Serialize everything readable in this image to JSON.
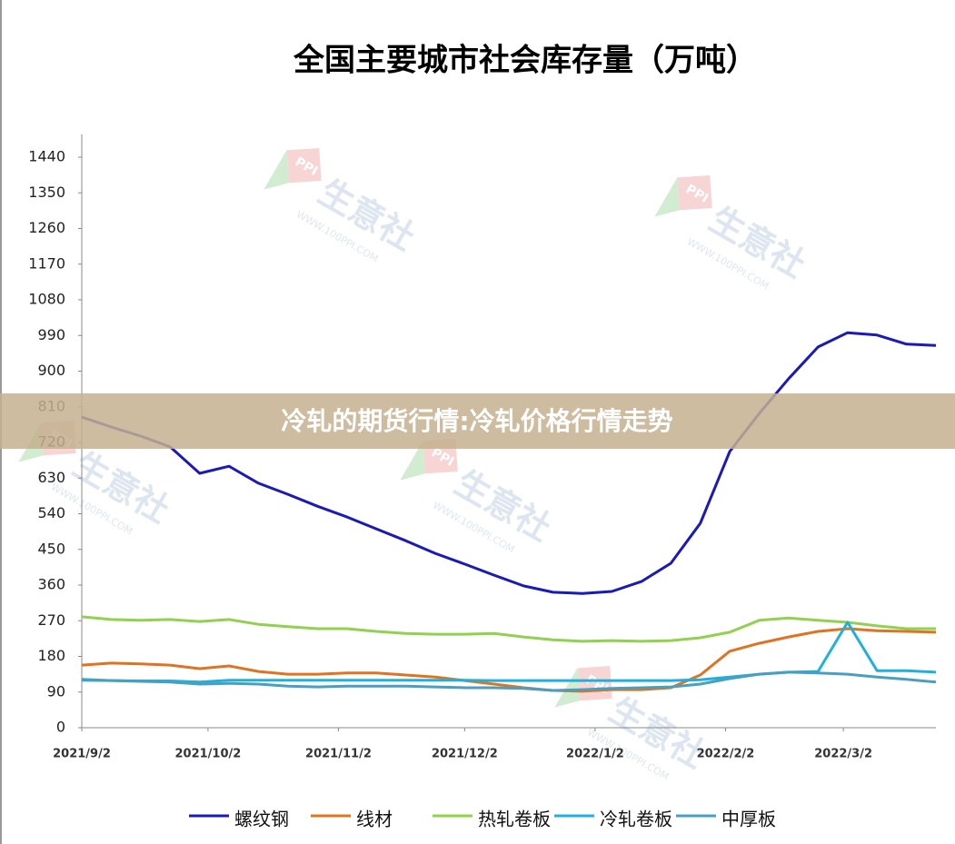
{
  "chart_data": {
    "type": "line",
    "title": "全国主要城市社会库存量（万吨）",
    "x": [
      0,
      7,
      14,
      21,
      28,
      35,
      42,
      49,
      56,
      63,
      70,
      77,
      84,
      91,
      98,
      105,
      112,
      119,
      126,
      133,
      140,
      147,
      154,
      161,
      168,
      175,
      182,
      189,
      196,
      203
    ],
    "xlim": [
      0,
      203
    ],
    "xticks": [
      {
        "value": 0,
        "label": "2021/9/2"
      },
      {
        "value": 30,
        "label": "2021/10/2"
      },
      {
        "value": 61,
        "label": "2021/11/2"
      },
      {
        "value": 91,
        "label": "2021/12/2"
      },
      {
        "value": 122,
        "label": "2022/1/2"
      },
      {
        "value": 153,
        "label": "2022/2/2"
      },
      {
        "value": 181,
        "label": "2022/3/2"
      }
    ],
    "ylim": [
      0,
      1440
    ],
    "yticks": [
      0,
      90,
      180,
      270,
      360,
      450,
      540,
      630,
      720,
      810,
      900,
      990,
      1080,
      1170,
      1260,
      1350,
      1440
    ],
    "grid": false,
    "legend": "bottom",
    "series": [
      {
        "name": "螺纹钢",
        "color": "#1a1ab8",
        "values": [
          784,
          759,
          736,
          709,
          642,
          660,
          617,
          589,
          559,
          532,
          502,
          472,
          440,
          413,
          385,
          358,
          342,
          339,
          344,
          369,
          415,
          516,
          697,
          793,
          881,
          961,
          997,
          991,
          968,
          965
        ]
      },
      {
        "name": "线材",
        "color": "#e07322",
        "values": [
          158,
          163,
          161,
          158,
          149,
          156,
          142,
          135,
          135,
          138,
          138,
          133,
          128,
          119,
          110,
          101,
          94,
          92,
          96,
          96,
          101,
          133,
          193,
          213,
          229,
          243,
          250,
          245,
          243,
          241
        ]
      },
      {
        "name": "热轧卷板",
        "color": "#92d050",
        "values": [
          280,
          273,
          271,
          273,
          268,
          273,
          261,
          255,
          250,
          250,
          243,
          238,
          236,
          236,
          238,
          229,
          222,
          218,
          220,
          218,
          220,
          227,
          241,
          271,
          277,
          271,
          266,
          257,
          250,
          250
        ]
      },
      {
        "name": "冷轧卷板",
        "color": "#1fb0de",
        "values": [
          120,
          119,
          118,
          118,
          115,
          120,
          120,
          120,
          120,
          120,
          120,
          120,
          120,
          120,
          119,
          119,
          119,
          119,
          119,
          119,
          119,
          121,
          128,
          135,
          140,
          142,
          266,
          144,
          144,
          140
        ]
      },
      {
        "name": "中厚板",
        "color": "#4a9fc0",
        "values": [
          122,
          119,
          117,
          115,
          110,
          112,
          110,
          105,
          103,
          105,
          105,
          105,
          103,
          101,
          101,
          99,
          94,
          96,
          99,
          101,
          103,
          110,
          124,
          135,
          140,
          138,
          135,
          128,
          122,
          115
        ]
      }
    ]
  },
  "watermark": {
    "name": "生意社",
    "url": "WWW.100PPI.COM",
    "logo": "PPI"
  },
  "banner": {
    "text": "冷轧的期货行情:冷轧价格行情走势"
  }
}
